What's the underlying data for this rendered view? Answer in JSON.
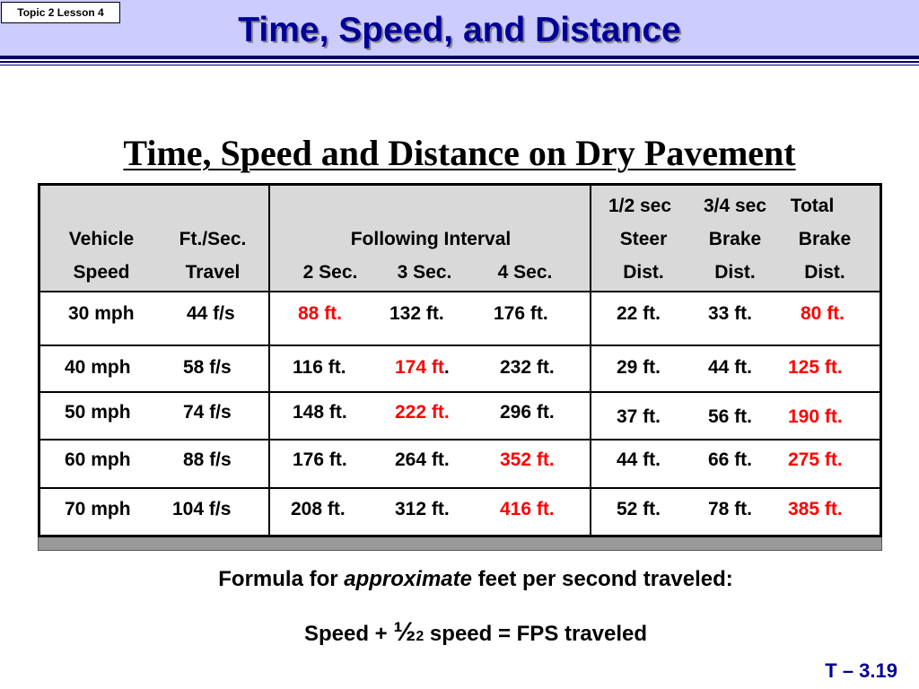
{
  "header": {
    "topic_tag": "Topic 2 Lesson 4",
    "title": "Time, Speed, and Distance"
  },
  "subtitle": "Time, Speed and Distance on Dry Pavement",
  "table": {
    "headers": {
      "vehicle": "Vehicle",
      "speed": "Speed",
      "ftsec": "Ft./Sec.",
      "travel": "Travel",
      "following_interval": "Following Interval",
      "sec2": "2 Sec.",
      "sec3": "3 Sec.",
      "sec4": "4 Sec.",
      "half_sec": "1/2 sec",
      "steer": "Steer",
      "steer_dist": "Dist.",
      "three_quarter_sec": "3/4 sec",
      "brake": "Brake",
      "brake_dist": "Dist.",
      "total": "Total",
      "total_brake": "Brake",
      "total_dist": "Dist."
    },
    "rows": [
      {
        "speed": "30 mph",
        "fps": "44 f/s",
        "s2": "88 ft.",
        "s3": "132 ft.",
        "s4": "176 ft.",
        "steer": "22 ft.",
        "brake": "33 ft.",
        "total": "80 ft.",
        "highlight": "s2"
      },
      {
        "speed": "40 mph",
        "fps": "58 f/s",
        "s2": "116 ft.",
        "s3": "174 ft",
        "s4": "232 ft.",
        "steer": "29 ft.",
        "brake": "44 ft.",
        "total": "125 ft.",
        "highlight": "s3"
      },
      {
        "speed": "50 mph",
        "fps": "74 f/s",
        "s2": "148 ft.",
        "s3": "222 ft.",
        "s4": "296 ft.",
        "steer": "37 ft.",
        "brake": "56 ft.",
        "total": "190 ft.",
        "highlight": "s3"
      },
      {
        "speed": "60 mph",
        "fps": "88 f/s",
        "s2": "176 ft.",
        "s3": "264 ft.",
        "s4": "352 ft.",
        "steer": "44 ft.",
        "brake": "66 ft.",
        "total": "275 ft.",
        "highlight": "s4"
      },
      {
        "speed": "70 mph",
        "fps": "104 f/s",
        "s2": "208 ft.",
        "s3": "312 ft.",
        "s4": "416 ft.",
        "steer": "52 ft.",
        "brake": "78 ft.",
        "total": "385 ft.",
        "highlight": "s4"
      }
    ]
  },
  "formula": {
    "line1_prefix": "Formula for ",
    "line1_emphasis": "approximate",
    "line1_suffix": " feet per second traveled:",
    "line2_prefix": "Speed + ",
    "line2_half_num": "½",
    "line2_half_den": "2",
    "line2_suffix": " speed = FPS traveled"
  },
  "slide_number": "T – 3.19",
  "colors": {
    "header_band": "#ccccff",
    "title": "#000099",
    "highlight": "#ff0000"
  }
}
